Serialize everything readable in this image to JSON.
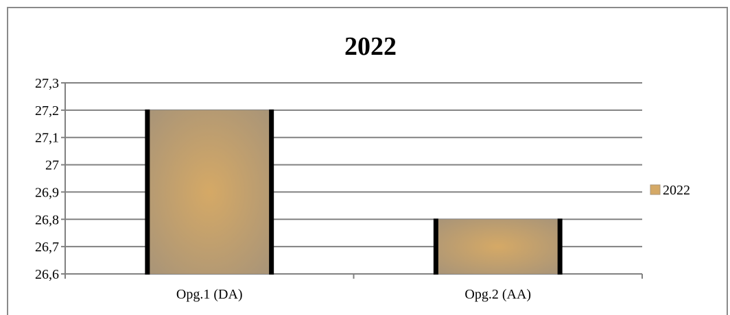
{
  "chart_data": {
    "type": "bar",
    "title": "2022",
    "categories": [
      "Opg.1 (DA)",
      "Opg.2 (AA)"
    ],
    "series": [
      {
        "name": "2022",
        "values": [
          27.2,
          26.8
        ]
      }
    ],
    "ylim": [
      26.6,
      27.3
    ],
    "yticks": [
      "26,6",
      "26,7",
      "26,8",
      "26,9",
      "27",
      "27,1",
      "27,2",
      "27,3"
    ],
    "xlabel": "",
    "ylabel": "",
    "grid": true,
    "legend_position": "right",
    "colors": {
      "bar_center": "#d5a966",
      "bar_edge": "#a89478",
      "bar_border": "#000000",
      "grid": "#808080"
    }
  }
}
